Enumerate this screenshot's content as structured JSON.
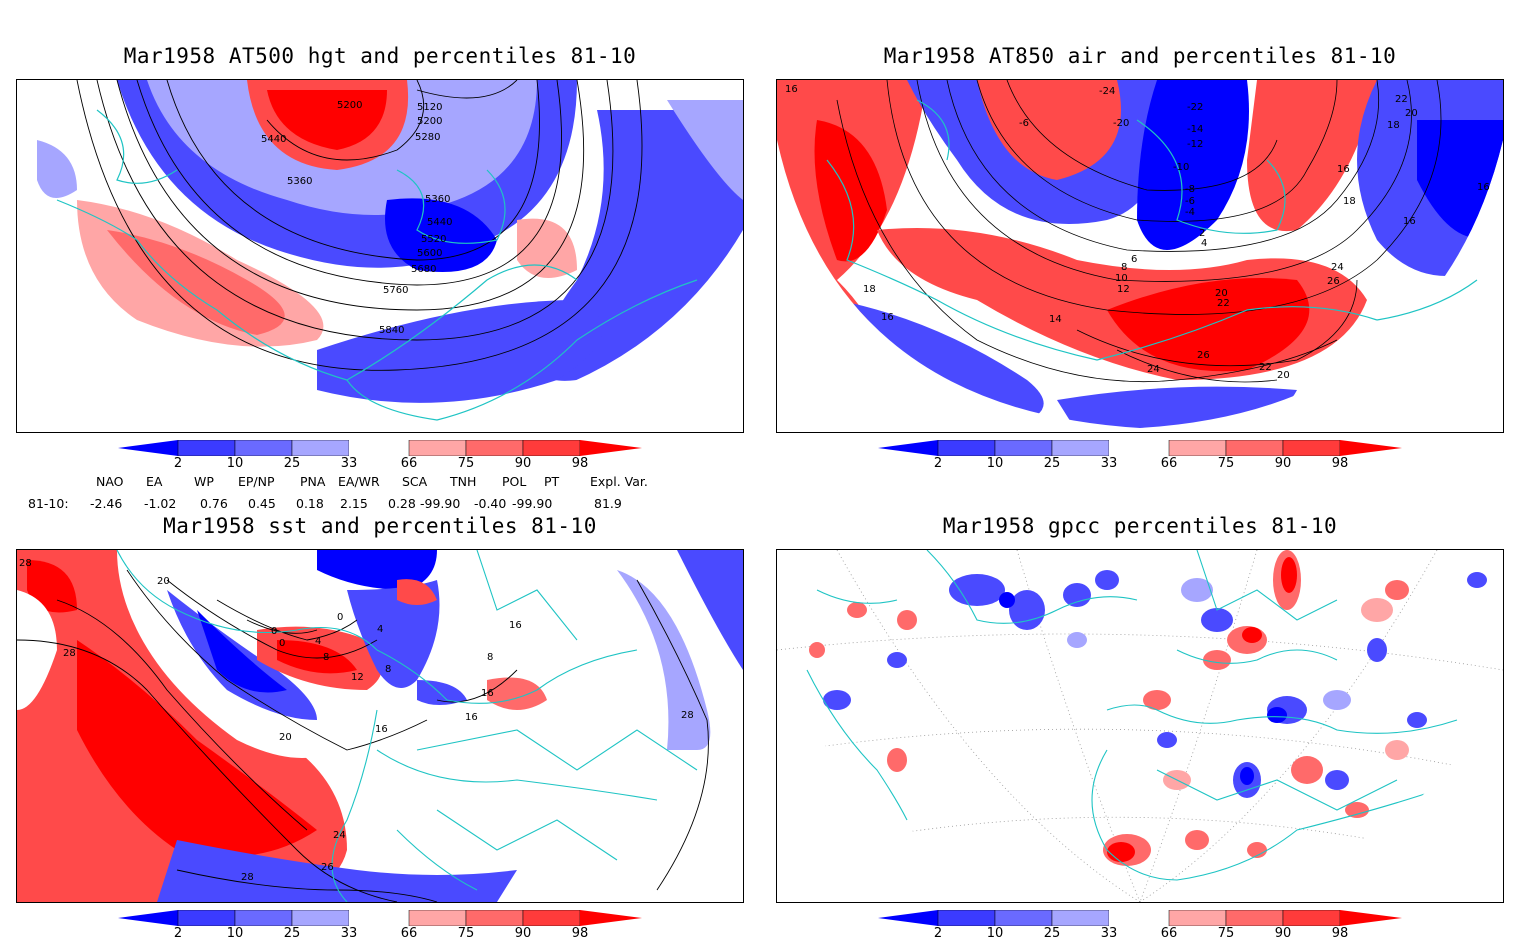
{
  "panels": [
    {
      "title": "Mar1958 AT500 hgt and percentiles 81-10",
      "contour_labels": [
        "5120",
        "5200",
        "5200",
        "5280",
        "5440",
        "5360",
        "5360",
        "5440",
        "5520",
        "5600",
        "5680",
        "5760",
        "5840"
      ]
    },
    {
      "title": "Mar1958 AT850 air and percentiles 81-10",
      "contour_labels": [
        "16",
        "-24",
        "-6",
        "-20",
        "-22",
        "-14",
        "-12",
        "-10",
        "-8",
        "-6",
        "-4",
        "22",
        "20",
        "18",
        "16",
        "18",
        "16",
        "16",
        "24",
        "26",
        "20",
        "22",
        "26",
        "22",
        "20",
        "24",
        "14",
        "12",
        "10",
        "8",
        "6",
        "4",
        "2",
        "18",
        "16"
      ]
    },
    {
      "title": "Mar1958 sst and percentiles 81-10",
      "contour_labels": [
        "28",
        "28",
        "20",
        "0",
        "0",
        "4",
        "8",
        "12",
        "0",
        "4",
        "8",
        "16",
        "16",
        "16",
        "20",
        "24",
        "26",
        "28",
        "28",
        "16",
        "8"
      ]
    },
    {
      "title": "Mar1958 gpcc percentiles 81-10",
      "contour_labels": []
    }
  ],
  "colorbar": {
    "ticks": [
      "2",
      "10",
      "25",
      "33",
      "66",
      "75",
      "90",
      "98"
    ],
    "colors": [
      "#0000ff",
      "#3b3bff",
      "#6a6aff",
      "#a6a6ff",
      "#ffffff",
      "#ffa6a6",
      "#ff6a6a",
      "#ff3b3b",
      "#ff0000"
    ]
  },
  "indices": {
    "headers": [
      "NAO",
      "EA",
      "WP",
      "EP/NP",
      "PNA",
      "EA/WR",
      "SCA",
      "TNH",
      "POL",
      "PT",
      "Expl. Var."
    ],
    "row_label": "81-10:",
    "values": [
      "-2.46",
      "-1.02",
      "0.76",
      "0.45",
      "0.18",
      "2.15",
      "0.28",
      "-99.90",
      "-0.40",
      "-99.90",
      "81.9"
    ]
  },
  "colors": {
    "coast": "#1fc4c4",
    "blue_dark": "#0000ff",
    "blue_mid": "#4a4aff",
    "blue_light": "#a6a6ff",
    "red_dark": "#ff0000",
    "red_mid": "#ff4a4a",
    "red_light": "#ffa6a6"
  }
}
